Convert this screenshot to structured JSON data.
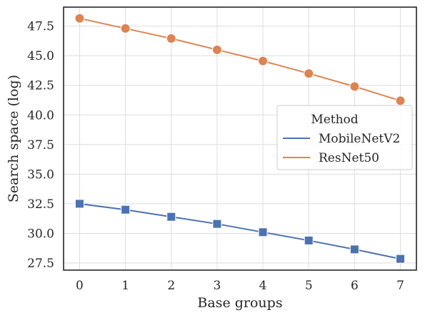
{
  "chart_data": {
    "type": "line",
    "title": "",
    "xlabel": "Base groups",
    "ylabel": "Search space (log)",
    "x": [
      0,
      1,
      2,
      3,
      4,
      5,
      6,
      7
    ],
    "xticks": [
      "0",
      "1",
      "2",
      "3",
      "4",
      "5",
      "6",
      "7"
    ],
    "yticks": [
      "27.5",
      "30.0",
      "32.5",
      "35.0",
      "37.5",
      "40.0",
      "42.5",
      "45.0",
      "47.5"
    ],
    "xlim": [
      -0.35,
      7.35
    ],
    "ylim": [
      26.9,
      49.1
    ],
    "grid": true,
    "legend": {
      "title": "Method",
      "placement": "center-right"
    },
    "series": [
      {
        "name": "MobileNetV2",
        "color": "#4c72b0",
        "marker": "square",
        "values": [
          32.5,
          32.0,
          31.4,
          30.8,
          30.1,
          29.4,
          28.65,
          27.85
        ]
      },
      {
        "name": "ResNet50",
        "color": "#dd8452",
        "marker": "circle",
        "values": [
          48.15,
          47.3,
          46.45,
          45.5,
          44.55,
          43.5,
          42.4,
          41.2
        ]
      }
    ]
  }
}
